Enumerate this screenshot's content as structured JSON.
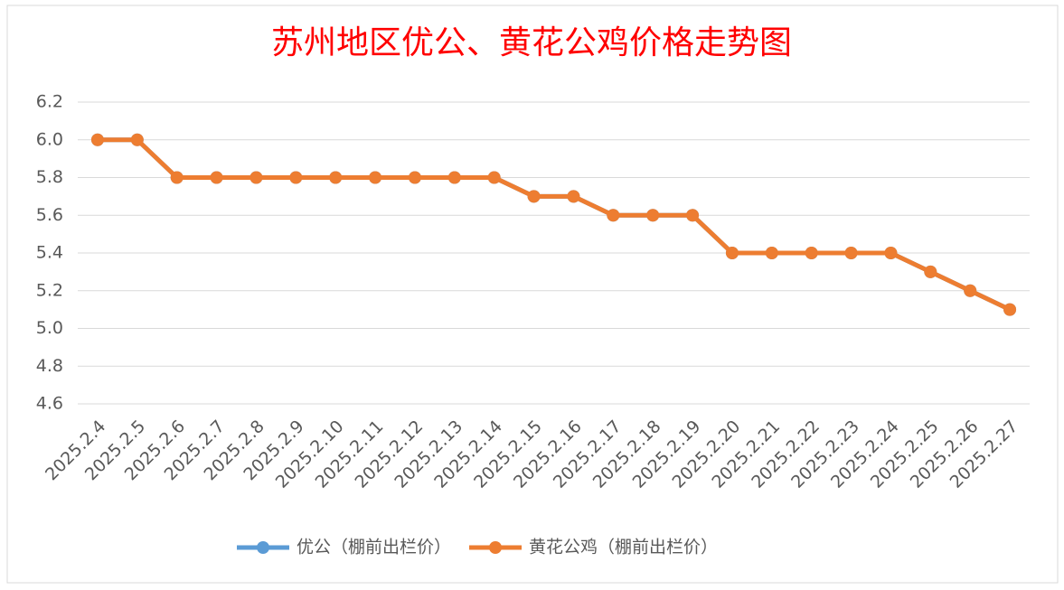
{
  "chart_data": {
    "type": "line",
    "title": "苏州地区优公、黄花公鸡价格走势图",
    "categories": [
      "2025.2.4",
      "2025.2.5",
      "2025.2.6",
      "2025.2.7",
      "2025.2.8",
      "2025.2.9",
      "2025.2.10",
      "2025.2.11",
      "2025.2.12",
      "2025.2.13",
      "2025.2.14",
      "2025.2.15",
      "2025.2.16",
      "2025.2.17",
      "2025.2.18",
      "2025.2.19",
      "2025.2.20",
      "2025.2.21",
      "2025.2.22",
      "2025.2.23",
      "2025.2.24",
      "2025.2.25",
      "2025.2.26",
      "2025.2.27"
    ],
    "series": [
      {
        "name": "优公（棚前出栏价）",
        "color": "#5b9bd5",
        "values": [
          6.0,
          6.0,
          5.8,
          5.8,
          5.8,
          5.8,
          5.8,
          5.8,
          5.8,
          5.8,
          5.8,
          5.7,
          5.7,
          5.6,
          5.6,
          5.6,
          5.4,
          5.4,
          5.4,
          5.4,
          5.4,
          5.3,
          5.2,
          5.1
        ]
      },
      {
        "name": "黄花公鸡（棚前出栏价）",
        "color": "#ed7d31",
        "values": [
          6.0,
          6.0,
          5.8,
          5.8,
          5.8,
          5.8,
          5.8,
          5.8,
          5.8,
          5.8,
          5.8,
          5.7,
          5.7,
          5.6,
          5.6,
          5.6,
          5.4,
          5.4,
          5.4,
          5.4,
          5.4,
          5.3,
          5.2,
          5.1
        ]
      }
    ],
    "ylim": [
      4.6,
      6.2
    ],
    "yticks": [
      4.6,
      4.8,
      {
        "value": 5.0,
        "label": "5.0"
      },
      5.2,
      5.4,
      5.6,
      5.8,
      {
        "value": 6.0,
        "label": "6.0"
      },
      6.2
    ],
    "grid": true,
    "legend": "bottom"
  }
}
